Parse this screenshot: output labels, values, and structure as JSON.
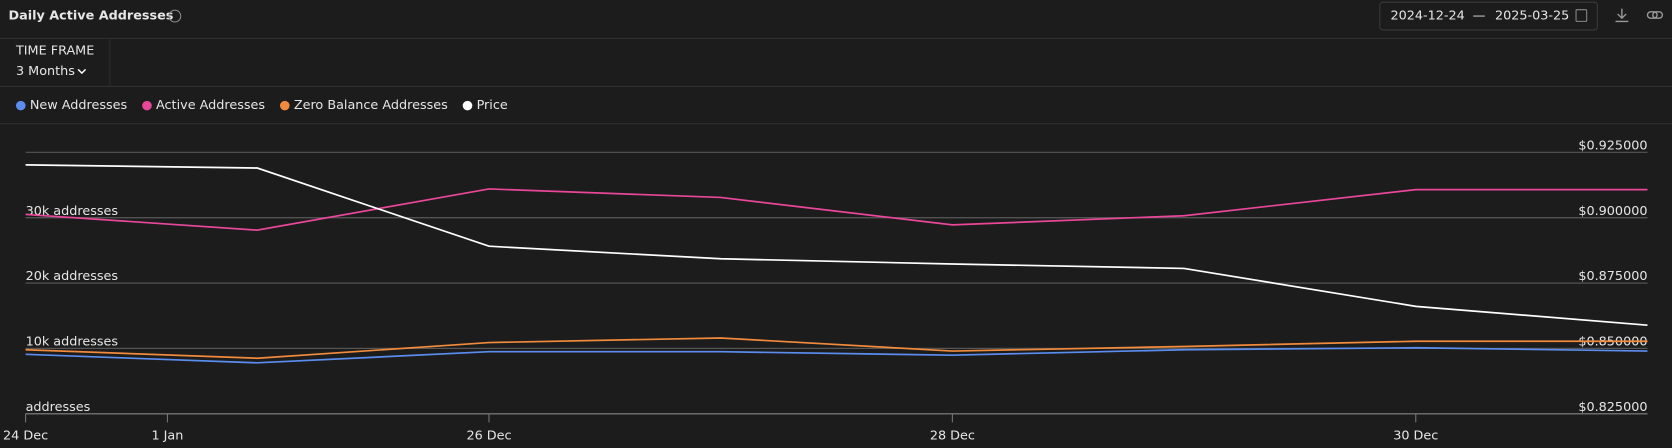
{
  "controls": {
    "time_frame_label": "TIME FRAME",
    "time_frame": "3 Months",
    "date_start": "2024-12-24",
    "date_separator": "—",
    "date_end": "2025-03-25"
  },
  "chart_data": {
    "type": "line",
    "title": "Daily Active Addresses",
    "categories": [
      "24 Dec",
      null,
      "26 Dec",
      null,
      "28 Dec",
      null,
      "30 Dec",
      null
    ],
    "x_extra_label": "1 Jan",
    "series": [
      {
        "name": "New Addresses",
        "color": "#5b8def",
        "values": [
          9100,
          7800,
          9500,
          9500,
          8970,
          9800,
          10100,
          9600
        ]
      },
      {
        "name": "Active Addresses",
        "color": "#e8479a",
        "values": [
          30500,
          28100,
          34400,
          33100,
          28900,
          30300,
          34300,
          34300
        ]
      },
      {
        "name": "Zero Balance Addresses",
        "color": "#f08a3c",
        "values": [
          9800,
          8500,
          10900,
          11600,
          9600,
          10300,
          11100,
          11100
        ]
      },
      {
        "name": "Price",
        "color": "#ffffff",
        "axis": "y2",
        "values": [
          0.9202,
          0.919,
          0.8891,
          0.8843,
          0.8823,
          0.8806,
          0.8661,
          0.8589
        ]
      }
    ],
    "ylim": [
      0,
      40000
    ],
    "yticks": [
      {
        "value": 0,
        "label": "addresses"
      },
      {
        "value": 10000,
        "label": "10k addresses"
      },
      {
        "value": 20000,
        "label": "20k addresses"
      },
      {
        "value": 30000,
        "label": "30k addresses"
      }
    ],
    "y2lim": [
      0.825,
      0.925
    ],
    "y2ticks": [
      {
        "value": 0.825,
        "label": "$0.825000"
      },
      {
        "value": 0.85,
        "label": "$0.850000"
      },
      {
        "value": 0.875,
        "label": "$0.875000"
      },
      {
        "value": 0.9,
        "label": "$0.900000"
      },
      {
        "value": 0.925,
        "label": "$0.925000"
      }
    ],
    "grid": true
  }
}
